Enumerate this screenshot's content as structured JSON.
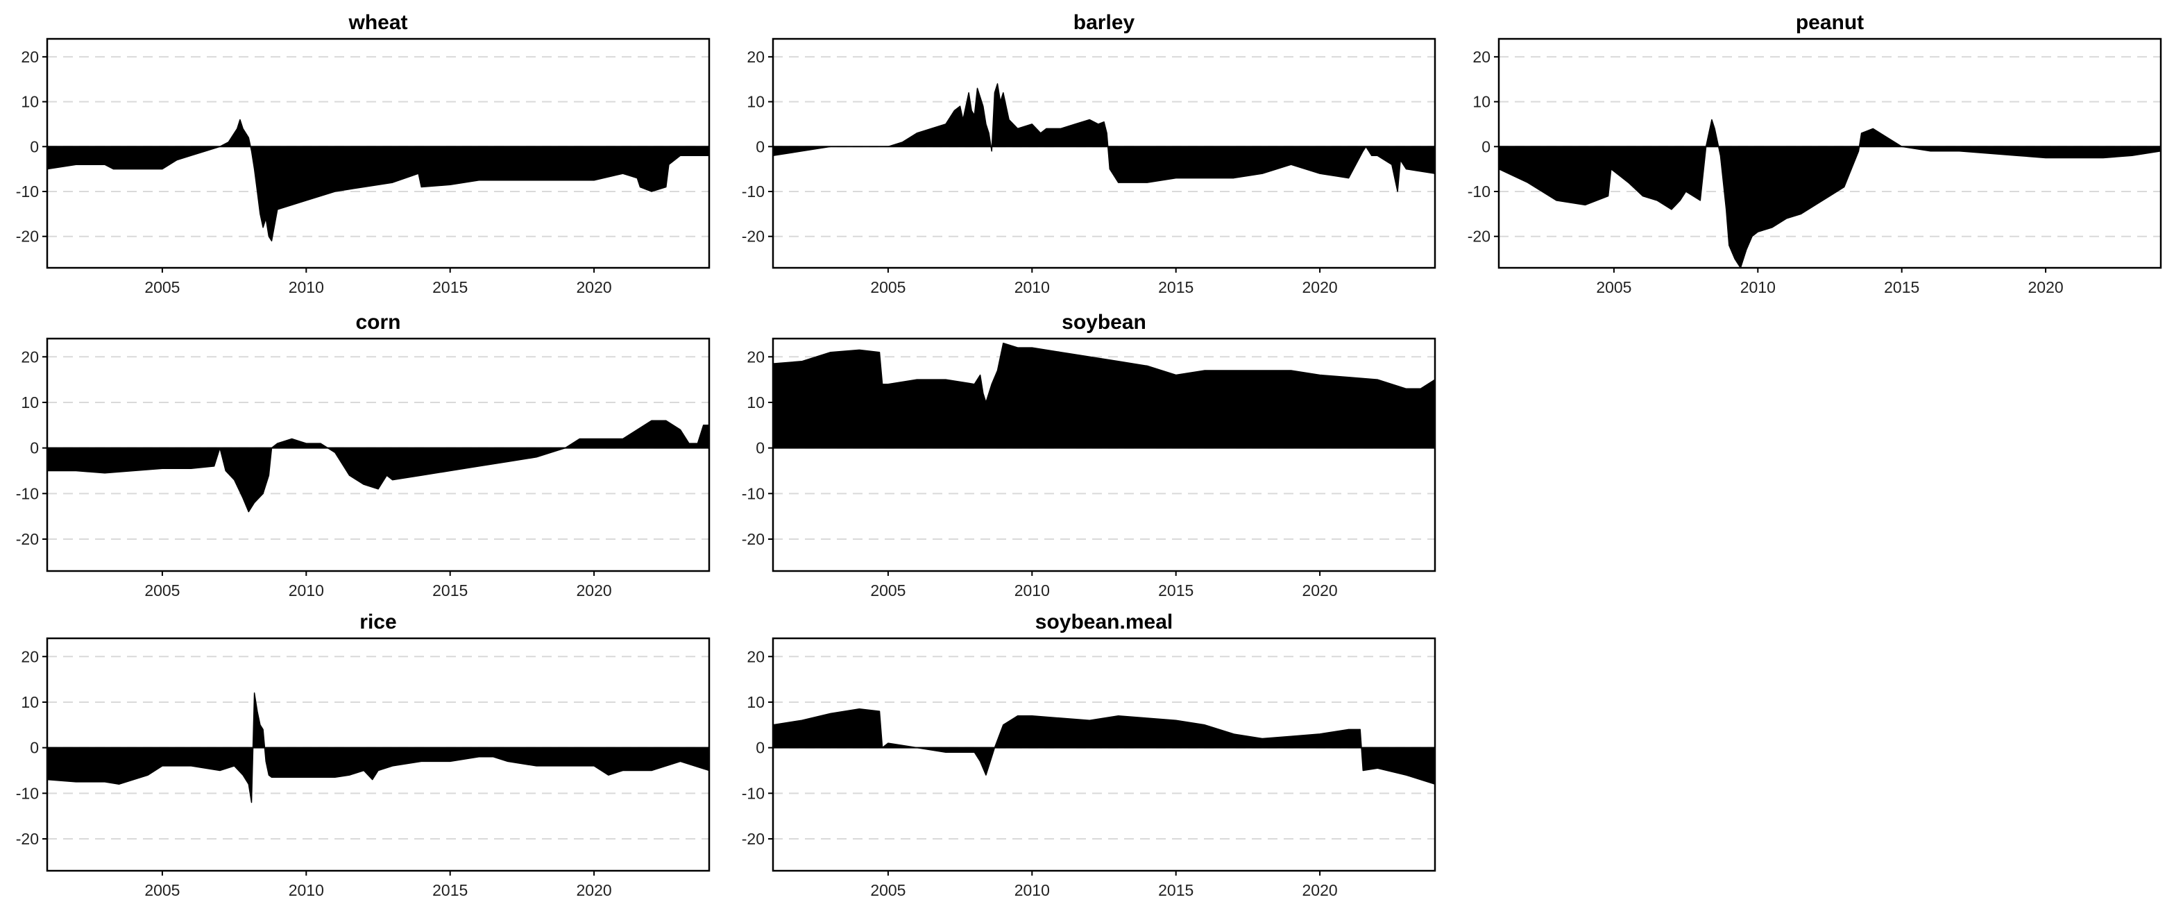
{
  "style": {
    "fill": "#000000",
    "grid": "#d9d9d9",
    "frame": "#000000",
    "background": "#ffffff"
  },
  "chart_data": [
    {
      "type": "area",
      "title": "wheat",
      "xlabel": "",
      "ylabel": "",
      "xlim": [
        2001,
        2024
      ],
      "ylim": [
        -27,
        24
      ],
      "xticks": [
        2005,
        2010,
        2015,
        2020
      ],
      "yticks": [
        -20,
        -10,
        0,
        10,
        20
      ],
      "grid": true,
      "x": [
        2001.0,
        2002.0,
        2003.0,
        2003.3,
        2004.0,
        2005.0,
        2005.5,
        2006.0,
        2006.5,
        2007.0,
        2007.3,
        2007.5,
        2007.6,
        2007.7,
        2007.8,
        2007.9,
        2008.0,
        2008.1,
        2008.2,
        2008.3,
        2008.4,
        2008.5,
        2008.6,
        2008.7,
        2008.8,
        2009.0,
        2010.0,
        2011.0,
        2012.0,
        2013.0,
        2013.9,
        2014.0,
        2015.0,
        2016.0,
        2017.0,
        2018.0,
        2019.0,
        2020.0,
        2021.0,
        2021.5,
        2021.6,
        2022.0,
        2022.5,
        2022.6,
        2023.0,
        2024.0
      ],
      "y": [
        -5,
        -4,
        -4,
        -5,
        -5,
        -5,
        -3,
        -2,
        -1,
        0,
        1,
        3,
        4,
        6,
        4,
        3,
        2,
        -1,
        -5,
        -10,
        -15,
        -18,
        -16,
        -20,
        -21,
        -14,
        -12,
        -10,
        -9,
        -8,
        -6,
        -9,
        -8.5,
        -7.5,
        -7.5,
        -7.5,
        -7.5,
        -7.5,
        -6,
        -7,
        -9,
        -10,
        -9,
        -4,
        -2,
        -2
      ]
    },
    {
      "type": "area",
      "title": "barley",
      "xlabel": "",
      "ylabel": "",
      "xlim": [
        2001,
        2024
      ],
      "ylim": [
        -27,
        24
      ],
      "xticks": [
        2005,
        2010,
        2015,
        2020
      ],
      "yticks": [
        -20,
        -10,
        0,
        10,
        20
      ],
      "grid": true,
      "x": [
        2001.0,
        2002.0,
        2003.0,
        2004.0,
        2005.0,
        2005.5,
        2006.0,
        2006.5,
        2007.0,
        2007.3,
        2007.5,
        2007.6,
        2007.8,
        2007.9,
        2008.0,
        2008.1,
        2008.3,
        2008.4,
        2008.5,
        2008.6,
        2008.7,
        2008.8,
        2008.9,
        2009.0,
        2009.2,
        2009.5,
        2010.0,
        2010.3,
        2010.5,
        2011.0,
        2011.5,
        2012.0,
        2012.3,
        2012.5,
        2012.6,
        2012.7,
        2013.0,
        2014.0,
        2015.0,
        2016.0,
        2017.0,
        2018.0,
        2018.5,
        2019.0,
        2020.0,
        2021.0,
        2021.5,
        2021.6,
        2021.8,
        2022.0,
        2022.5,
        2022.7,
        2022.8,
        2023.0,
        2024.0
      ],
      "y": [
        -2,
        -1,
        0,
        0,
        0,
        1,
        3,
        4,
        5,
        8,
        9,
        6,
        12,
        8,
        7,
        13,
        9,
        5,
        3,
        -1,
        12,
        14,
        10,
        12,
        6,
        4,
        5,
        3,
        4,
        4,
        5,
        6,
        5,
        5.5,
        3,
        -5,
        -8,
        -8,
        -7,
        -7,
        -7,
        -6,
        -5,
        -4,
        -6,
        -7,
        -1,
        0,
        -2,
        -2,
        -4,
        -10,
        -3,
        -5,
        -6
      ]
    },
    {
      "type": "area",
      "title": "peanut",
      "xlabel": "",
      "ylabel": "",
      "xlim": [
        2001,
        2024
      ],
      "ylim": [
        -27,
        24
      ],
      "xticks": [
        2005,
        2010,
        2015,
        2020
      ],
      "yticks": [
        -20,
        -10,
        0,
        10,
        20
      ],
      "grid": true,
      "x": [
        2001.0,
        2002.0,
        2003.0,
        2004.0,
        2004.8,
        2004.9,
        2005.5,
        2006.0,
        2006.5,
        2007.0,
        2007.3,
        2007.5,
        2008.0,
        2008.2,
        2008.4,
        2008.5,
        2008.7,
        2008.9,
        2009.0,
        2009.2,
        2009.4,
        2009.6,
        2009.8,
        2010.0,
        2010.5,
        2011.0,
        2011.5,
        2012.0,
        2012.5,
        2013.0,
        2013.5,
        2013.6,
        2014.0,
        2014.5,
        2015.0,
        2016.0,
        2017.0,
        2018.0,
        2019.0,
        2020.0,
        2021.0,
        2022.0,
        2023.0,
        2024.0
      ],
      "y": [
        -5,
        -8,
        -12,
        -13,
        -11,
        -5,
        -8,
        -11,
        -12,
        -14,
        -12,
        -10,
        -12,
        0,
        6,
        4,
        -2,
        -14,
        -22,
        -25,
        -27,
        -23,
        -20,
        -19,
        -18,
        -16,
        -15,
        -13,
        -11,
        -9,
        -1,
        3,
        4,
        2,
        0,
        -1,
        -1,
        -1.5,
        -2,
        -2.5,
        -2.5,
        -2.5,
        -2,
        -1
      ]
    },
    {
      "type": "area",
      "title": "corn",
      "xlabel": "",
      "ylabel": "",
      "xlim": [
        2001,
        2024
      ],
      "ylim": [
        -27,
        24
      ],
      "xticks": [
        2005,
        2010,
        2015,
        2020
      ],
      "yticks": [
        -20,
        -10,
        0,
        10,
        20
      ],
      "grid": true,
      "x": [
        2001.0,
        2002.0,
        2003.0,
        2004.0,
        2005.0,
        2006.0,
        2006.8,
        2007.0,
        2007.2,
        2007.5,
        2007.8,
        2008.0,
        2008.2,
        2008.5,
        2008.7,
        2008.8,
        2009.0,
        2009.5,
        2010.0,
        2010.5,
        2011.0,
        2011.5,
        2012.0,
        2012.5,
        2012.8,
        2013.0,
        2014.0,
        2015.0,
        2016.0,
        2017.0,
        2018.0,
        2019.0,
        2019.5,
        2020.0,
        2021.0,
        2021.5,
        2022.0,
        2022.5,
        2023.0,
        2023.3,
        2023.6,
        2023.8,
        2024.0
      ],
      "y": [
        -5,
        -5,
        -5.5,
        -5,
        -4.5,
        -4.5,
        -4,
        0,
        -5,
        -7,
        -11,
        -14,
        -12,
        -10,
        -6,
        0,
        1,
        2,
        1,
        1,
        -1,
        -6,
        -8,
        -9,
        -6,
        -7,
        -6,
        -5,
        -4,
        -3,
        -2,
        0,
        2,
        2,
        2,
        4,
        6,
        6,
        4,
        1,
        1,
        5,
        5
      ]
    },
    {
      "type": "area",
      "title": "soybean",
      "xlabel": "",
      "ylabel": "",
      "xlim": [
        2001,
        2024
      ],
      "ylim": [
        -27,
        24
      ],
      "xticks": [
        2005,
        2010,
        2015,
        2020
      ],
      "yticks": [
        -20,
        -10,
        0,
        10,
        20
      ],
      "grid": true,
      "x": [
        2001.0,
        2002.0,
        2003.0,
        2004.0,
        2004.7,
        2004.8,
        2005.0,
        2006.0,
        2007.0,
        2008.0,
        2008.2,
        2008.3,
        2008.4,
        2008.6,
        2008.8,
        2009.0,
        2009.5,
        2010.0,
        2011.0,
        2012.0,
        2013.0,
        2014.0,
        2015.0,
        2016.0,
        2017.0,
        2018.0,
        2019.0,
        2020.0,
        2021.0,
        2022.0,
        2023.0,
        2023.5,
        2024.0
      ],
      "y": [
        18.5,
        19,
        21,
        21.5,
        21,
        14,
        14,
        15,
        15,
        14,
        16,
        12,
        10,
        14,
        17,
        23,
        22,
        22,
        21,
        20,
        19,
        18,
        16,
        17,
        17,
        17,
        17,
        16,
        15.5,
        15,
        13,
        13,
        15
      ]
    },
    {
      "type": "area",
      "title": "rice",
      "xlabel": "",
      "ylabel": "",
      "xlim": [
        2001,
        2024
      ],
      "ylim": [
        -27,
        24
      ],
      "xticks": [
        2005,
        2010,
        2015,
        2020
      ],
      "yticks": [
        -20,
        -10,
        0,
        10,
        20
      ],
      "grid": true,
      "x": [
        2001.0,
        2002.0,
        2003.0,
        2003.5,
        2004.0,
        2004.5,
        2005.0,
        2006.0,
        2007.0,
        2007.5,
        2007.8,
        2008.0,
        2008.1,
        2008.2,
        2008.3,
        2008.4,
        2008.5,
        2008.6,
        2008.7,
        2008.8,
        2009.0,
        2010.0,
        2011.0,
        2011.5,
        2012.0,
        2012.3,
        2012.5,
        2013.0,
        2014.0,
        2015.0,
        2016.0,
        2016.5,
        2017.0,
        2018.0,
        2019.0,
        2020.0,
        2020.5,
        2021.0,
        2022.0,
        2023.0,
        2024.0
      ],
      "y": [
        -7,
        -7.5,
        -7.5,
        -8,
        -7,
        -6,
        -4,
        -4,
        -5,
        -4,
        -6,
        -8,
        -12,
        12,
        8,
        5,
        4,
        -3,
        -6,
        -6.5,
        -6.5,
        -6.5,
        -6.5,
        -6,
        -5,
        -7,
        -5,
        -4,
        -3,
        -3,
        -2,
        -2,
        -3,
        -4,
        -4,
        -4,
        -6,
        -5,
        -5,
        -3,
        -5
      ]
    },
    {
      "type": "area",
      "title": "soybean.meal",
      "xlabel": "",
      "ylabel": "",
      "xlim": [
        2001,
        2024
      ],
      "ylim": [
        -27,
        24
      ],
      "xticks": [
        2005,
        2010,
        2015,
        2020
      ],
      "yticks": [
        -20,
        -10,
        0,
        10,
        20
      ],
      "grid": true,
      "x": [
        2001.0,
        2002.0,
        2003.0,
        2004.0,
        2004.7,
        2004.8,
        2005.0,
        2006.0,
        2007.0,
        2008.0,
        2008.2,
        2008.4,
        2008.5,
        2008.7,
        2009.0,
        2009.5,
        2010.0,
        2011.0,
        2012.0,
        2013.0,
        2014.0,
        2015.0,
        2016.0,
        2017.0,
        2018.0,
        2019.0,
        2020.0,
        2021.0,
        2021.4,
        2021.5,
        2022.0,
        2023.0,
        2023.5,
        2024.0
      ],
      "y": [
        5,
        6,
        7.5,
        8.5,
        8,
        0,
        1,
        0,
        -1,
        -1,
        -3,
        -6,
        -4,
        0,
        5,
        7,
        7,
        6.5,
        6,
        7,
        6.5,
        6,
        5,
        3,
        2,
        2.5,
        3,
        4,
        4,
        -5,
        -4.5,
        -6,
        -7,
        -8
      ]
    }
  ]
}
